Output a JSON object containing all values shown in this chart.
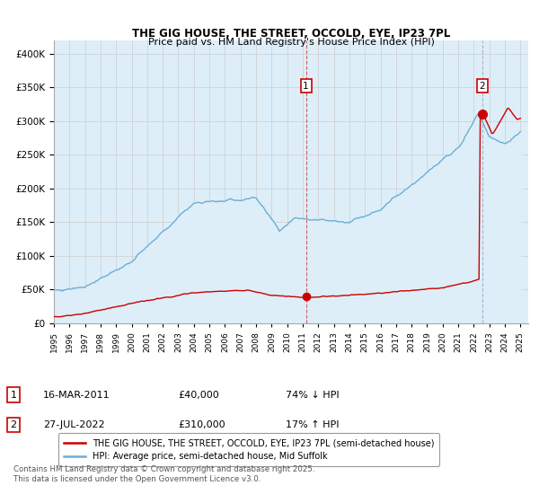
{
  "title": "THE GIG HOUSE, THE STREET, OCCOLD, EYE, IP23 7PL",
  "subtitle": "Price paid vs. HM Land Registry's House Price Index (HPI)",
  "legend_line1": "THE GIG HOUSE, THE STREET, OCCOLD, EYE, IP23 7PL (semi-detached house)",
  "legend_line2": "HPI: Average price, semi-detached house, Mid Suffolk",
  "transaction1_date": "16-MAR-2011",
  "transaction1_price": 40000,
  "transaction1_note": "74% ↓ HPI",
  "transaction2_date": "27-JUL-2022",
  "transaction2_price": 310000,
  "transaction2_note": "17% ↑ HPI",
  "hpi_color": "#6baed6",
  "hpi_fill_color": "#ddeef8",
  "price_color": "#cc0000",
  "grid_color": "#cccccc",
  "ylim": [
    0,
    420000
  ],
  "footnote": "Contains HM Land Registry data © Crown copyright and database right 2025.\nThis data is licensed under the Open Government Licence v3.0.",
  "xstart_year": 1995,
  "xend_year": 2025,
  "t1_year": 2011.21,
  "t1_price": 40000,
  "t2_year": 2022.55,
  "t2_price": 310000
}
